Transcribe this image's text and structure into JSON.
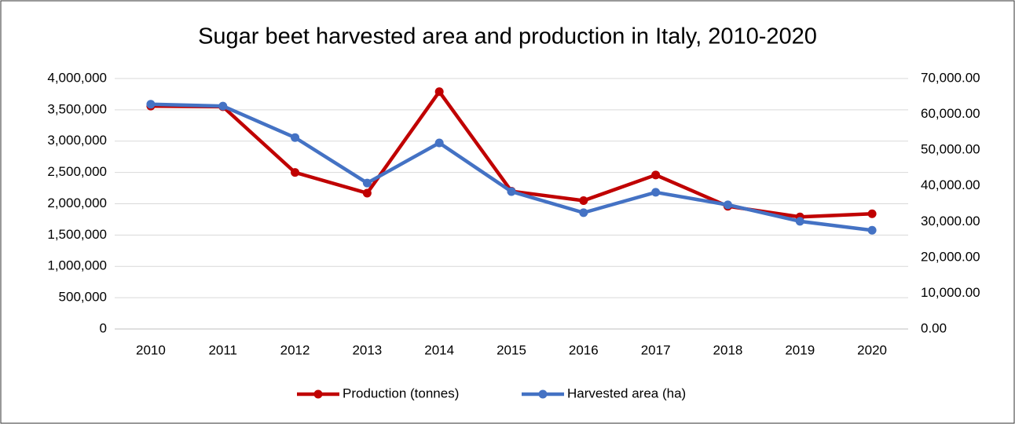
{
  "chart_data": {
    "type": "line",
    "title": "Sugar beet harvested area and production in Italy, 2010-2020",
    "categories": [
      "2010",
      "2011",
      "2012",
      "2013",
      "2014",
      "2015",
      "2016",
      "2017",
      "2018",
      "2019",
      "2020"
    ],
    "series": [
      {
        "name": "Production (tonnes)",
        "color": "#c00000",
        "values": [
          3560000,
          3550000,
          2500000,
          2170000,
          3790000,
          2200000,
          2050000,
          2460000,
          1960000,
          1790000,
          1840000
        ]
      },
      {
        "name": "Harvested area (ha)",
        "color": "#4472c4",
        "axis": "y2",
        "values": [
          62800,
          62300,
          53500,
          40800,
          52000,
          38400,
          32500,
          38200,
          34700,
          30100,
          27600
        ]
      }
    ],
    "ylim": [
      0,
      4000000
    ],
    "yticks": [
      0,
      {
        "value": 500000,
        "label": "500,000"
      },
      {
        "value": 1000000,
        "label": "1,000,000"
      },
      {
        "value": 1500000,
        "label": "1,500,000"
      },
      {
        "value": 2000000,
        "label": "2,000,000"
      },
      {
        "value": 2500000,
        "label": "2,500,000"
      },
      {
        "value": 3000000,
        "label": "3,000,000"
      },
      {
        "value": 3500000,
        "label": "3,500,000"
      },
      {
        "value": 4000000,
        "label": "4,000,000"
      }
    ],
    "y2lim": [
      0,
      70000
    ],
    "y2ticks": [
      {
        "value": 0,
        "label": "0.00"
      },
      {
        "value": 10000,
        "label": "10,000.00"
      },
      {
        "value": 20000,
        "label": "20,000.00"
      },
      {
        "value": 30000,
        "label": "30,000.00"
      },
      {
        "value": 40000,
        "label": "40,000.00"
      },
      {
        "value": 50000,
        "label": "50,000.00"
      },
      {
        "value": 60000,
        "label": "60,000.00"
      },
      {
        "value": 70000,
        "label": "70,000.00"
      }
    ],
    "grid": true,
    "legend": "bottom"
  }
}
